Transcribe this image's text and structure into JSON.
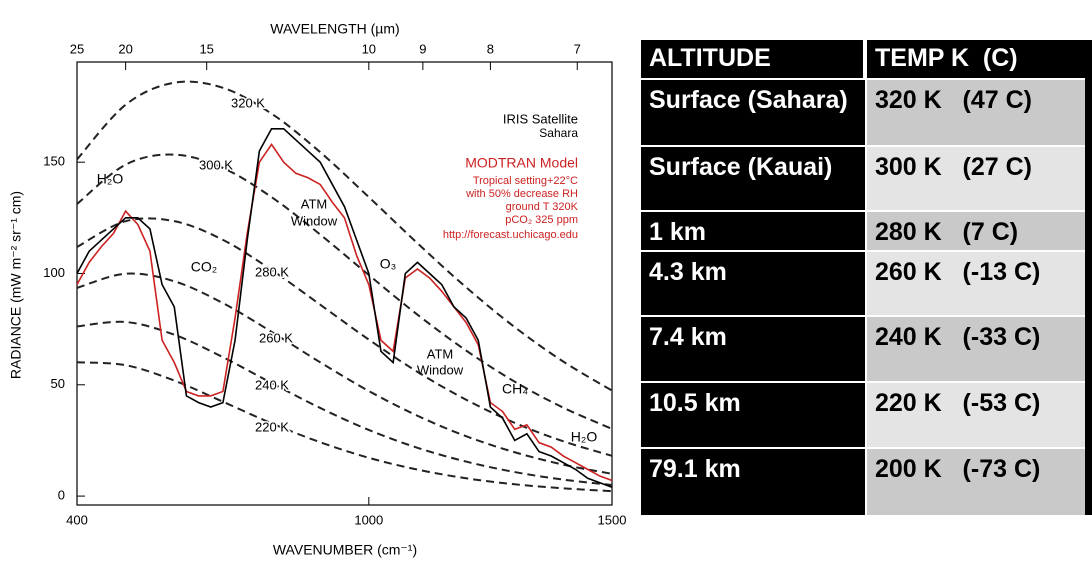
{
  "chart_data": {
    "type": "line",
    "x_top_label": "WAVELENGTH (µm)",
    "x_label": "WAVENUMBER (cm⁻¹)",
    "y_label": "RADIANCE (mW m⁻² sr⁻¹ cm)",
    "xlim": [
      400,
      1500
    ],
    "xticks": [
      400,
      1000,
      1500
    ],
    "x2ticks": [
      25,
      20,
      15,
      10,
      9,
      8,
      7
    ],
    "ylim": [
      -4,
      195
    ],
    "yticks": [
      0,
      50,
      100,
      150
    ],
    "x": [
      400,
      425,
      450,
      475,
      500,
      525,
      550,
      575,
      600,
      625,
      650,
      675,
      700,
      725,
      750,
      775,
      800,
      825,
      850,
      875,
      900,
      925,
      950,
      975,
      1000,
      1025,
      1050,
      1075,
      1100,
      1125,
      1150,
      1175,
      1200,
      1225,
      1250,
      1275,
      1300,
      1325,
      1350,
      1375,
      1400,
      1425,
      1450,
      1475,
      1500
    ],
    "series": [
      {
        "name": "IRIS Satellite",
        "color": "#000000",
        "style": "solid",
        "values": [
          100,
          110,
          115,
          120,
          125,
          125,
          120,
          95,
          85,
          45,
          42,
          40,
          42,
          70,
          115,
          155,
          165,
          165,
          160,
          155,
          150,
          140,
          130,
          115,
          100,
          65,
          60,
          100,
          105,
          100,
          95,
          85,
          80,
          70,
          40,
          35,
          25,
          28,
          20,
          18,
          15,
          12,
          8,
          6,
          4
        ]
      },
      {
        "name": "MODTRAN Model",
        "color": "#cc2222",
        "style": "solid",
        "values": [
          95,
          105,
          112,
          118,
          128,
          122,
          110,
          70,
          60,
          47,
          45,
          45,
          47,
          80,
          118,
          150,
          158,
          150,
          145,
          143,
          140,
          132,
          125,
          108,
          95,
          70,
          65,
          98,
          102,
          98,
          92,
          85,
          78,
          68,
          42,
          38,
          30,
          32,
          24,
          22,
          18,
          15,
          12,
          9,
          7
        ]
      },
      {
        "name": "320 K",
        "color": "#222222",
        "style": "dashed",
        "x": [
          400,
          500,
          600,
          700,
          800,
          900,
          1000,
          1100,
          1200,
          1300,
          1400,
          1500
        ],
        "values": [
          151.2,
          175.8,
          185.7,
          183.4,
          171.8,
          154.5,
          134.3,
          113.6,
          93.8,
          75.9,
          60.4,
          47.4
        ]
      },
      {
        "name": "300 K",
        "color": "#222222",
        "style": "dashed",
        "x": [
          400,
          500,
          600,
          700,
          800,
          900,
          1000,
          1100,
          1200,
          1300,
          1400,
          1500
        ],
        "values": [
          131.2,
          148.9,
          153.4,
          147.4,
          134.3,
          117.5,
          99.3,
          81.5,
          65.4,
          51.4,
          39.7,
          30.2
        ]
      },
      {
        "name": "280 K",
        "color": "#222222",
        "style": "dashed",
        "x": [
          400,
          500,
          600,
          700,
          800,
          900,
          1000,
          1100,
          1200,
          1300,
          1400,
          1500
        ],
        "values": [
          111.9,
          123.5,
          123.5,
          115.1,
          101.6,
          86.0,
          70.3,
          55.8,
          43.3,
          32.9,
          24.6,
          18.1
        ]
      },
      {
        "name": "260 K",
        "color": "#222222",
        "style": "dashed",
        "x": [
          400,
          500,
          600,
          700,
          800,
          900,
          1000,
          1100,
          1200,
          1300,
          1400,
          1500
        ],
        "values": [
          93.5,
          99.9,
          96.5,
          86.7,
          73.8,
          60.1,
          47.2,
          36.1,
          26.9,
          19.7,
          14.1,
          10.0
        ]
      },
      {
        "name": "240 K",
        "color": "#222222",
        "style": "dashed",
        "x": [
          400,
          500,
          600,
          700,
          800,
          900,
          1000,
          1100,
          1200,
          1300,
          1400,
          1500
        ],
        "values": [
          76.2,
          78.2,
          72.5,
          62.4,
          50.8,
          39.6,
          29.7,
          21.7,
          15.5,
          10.8,
          7.4,
          5.0
        ]
      },
      {
        "name": "220 K",
        "color": "#222222",
        "style": "dashed",
        "x": [
          400,
          500,
          600,
          700,
          800,
          900,
          1000,
          1100,
          1200,
          1300,
          1400,
          1500
        ],
        "values": [
          60.1,
          58.8,
          51.9,
          42.4,
          32.7,
          24.2,
          17.2,
          11.9,
          8.0,
          5.3,
          3.5,
          2.2
        ]
      }
    ],
    "annotations": [
      {
        "text": "H₂O",
        "color": "#000000"
      },
      {
        "text": "CO₂",
        "color": "#000000"
      },
      {
        "text": "ATM",
        "color": "#000000"
      },
      {
        "text": "Window",
        "color": "#000000"
      },
      {
        "text": "O₃",
        "color": "#000000"
      },
      {
        "text": "ATM",
        "color": "#000000"
      },
      {
        "text": "Window",
        "color": "#000000"
      },
      {
        "text": "CH₄",
        "color": "#000000"
      },
      {
        "text": "H₂O",
        "color": "#000000"
      },
      {
        "text": "Sahara",
        "color": "#000000"
      },
      {
        "text": "Tropical setting+22°C",
        "color": "#cc2222"
      },
      {
        "text": "with 50% decrease RH",
        "color": "#cc2222"
      },
      {
        "text": "ground T 320K",
        "color": "#cc2222"
      },
      {
        "text": "pCO₂ 325 ppm",
        "color": "#cc2222"
      },
      {
        "text": "http://forecast.uchicago.edu",
        "color": "#cc2222"
      }
    ]
  },
  "table": {
    "header": [
      "ALTITUDE",
      "TEMP K  (C)"
    ],
    "rows": [
      [
        "Surface (Sahara)",
        "320 K   (47 C)"
      ],
      [
        "Surface (Kauai)",
        "300 K   (27 C)"
      ],
      [
        "1 km",
        "280 K   (7 C)"
      ],
      [
        "4.3 km",
        "260 K   (-13 C)"
      ],
      [
        "7.4 km",
        "240 K   (-33 C)"
      ],
      [
        "10.5 km",
        "220 K   (-53 C)"
      ],
      [
        "79.1 km",
        "200 K   (-73 C)"
      ]
    ]
  }
}
